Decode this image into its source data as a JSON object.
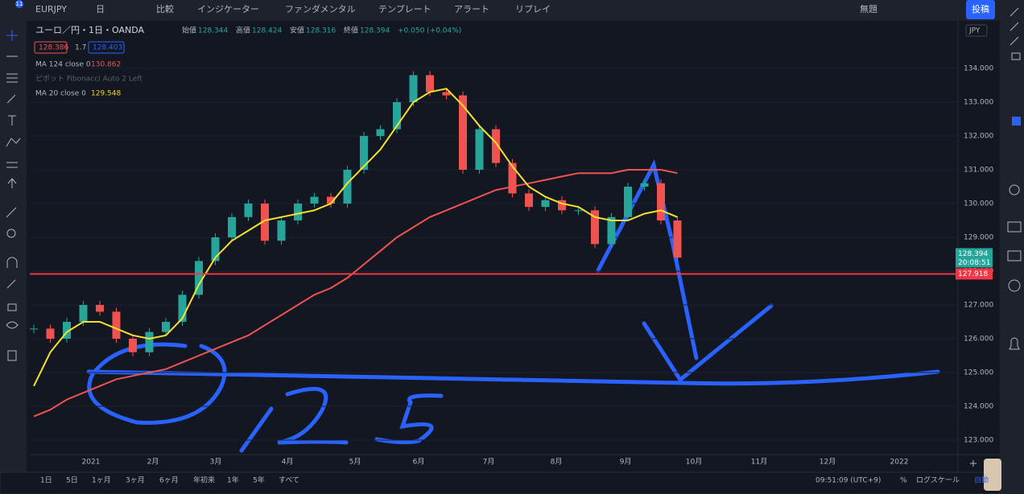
{
  "top_toolbar": {
    "badge": "11",
    "symbol": "EURJPY",
    "interval": "日",
    "items": [
      "比較",
      "インジケーター",
      "ファンダメンタル",
      "テンプレート",
      "アラート",
      "リプレイ"
    ],
    "layout_name": "無題",
    "publish": "投稿"
  },
  "legend": {
    "title": "ユーロ／円・1日・OANDA",
    "ohlc": [
      {
        "label": "始値",
        "value": "128.344"
      },
      {
        "label": "高値",
        "value": "128.424"
      },
      {
        "label": "安値",
        "value": "128.316"
      },
      {
        "label": "終値",
        "value": "128.394"
      }
    ],
    "change": "+0.050 (+0.04%)",
    "bid": "128.386",
    "spread": "1.7",
    "ask": "128.403",
    "indicators": [
      {
        "name": "MA 124 close 0",
        "value": "130.862"
      },
      {
        "name": "ピボット Fibonacci Auto 2 Left"
      },
      {
        "name": "MA 20 close 0",
        "value": "129.548"
      }
    ]
  },
  "chart": {
    "close": [
      126.3,
      126.0,
      126.5,
      127.0,
      126.8,
      126.0,
      125.6,
      126.2,
      126.5,
      127.3,
      128.3,
      129.0,
      129.6,
      130.0,
      128.9,
      129.5,
      130.0,
      130.2,
      130.0,
      131.0,
      132.0,
      132.2,
      133.0,
      133.8,
      133.3,
      133.2,
      131.0,
      132.2,
      131.2,
      130.3,
      129.9,
      130.1,
      129.8,
      129.8,
      128.8,
      129.6,
      130.5,
      130.6,
      129.5,
      128.4
    ],
    "ma20": [
      124.6,
      125.6,
      126.2,
      126.5,
      126.5,
      126.3,
      126.1,
      126.0,
      126.1,
      126.6,
      127.6,
      128.4,
      128.9,
      129.2,
      129.5,
      129.6,
      129.7,
      129.8,
      130.0,
      130.6,
      131.1,
      131.6,
      132.3,
      133.0,
      133.3,
      133.4,
      132.9,
      132.3,
      131.8,
      131.1,
      130.5,
      130.2,
      130.0,
      129.9,
      129.6,
      129.5,
      129.5,
      129.7,
      129.8,
      129.6
    ],
    "ma124": [
      123.7,
      123.9,
      124.2,
      124.4,
      124.6,
      124.8,
      124.9,
      125.0,
      125.1,
      125.3,
      125.5,
      125.7,
      125.9,
      126.1,
      126.4,
      126.7,
      127.0,
      127.3,
      127.5,
      127.8,
      128.2,
      128.6,
      129.0,
      129.3,
      129.6,
      129.8,
      130.0,
      130.2,
      130.4,
      130.5,
      130.6,
      130.7,
      130.8,
      130.9,
      130.9,
      130.9,
      131.0,
      131.0,
      131.0,
      130.9
    ],
    "horizontal_line": {
      "value": 127.918,
      "label": "127.918"
    },
    "last_price": {
      "value": 128.394,
      "label": "128.394"
    },
    "countdown": "20:08:51",
    "currency": "JPY",
    "yticks": [
      {
        "value": 134,
        "label": "134.000"
      },
      {
        "value": 133,
        "label": "133.000"
      },
      {
        "value": 132,
        "label": "132.000"
      },
      {
        "value": 131,
        "label": "131.000"
      },
      {
        "value": 130,
        "label": "130.000"
      },
      {
        "value": 129,
        "label": "129.000"
      },
      {
        "value": 128,
        "label": "128.000"
      },
      {
        "value": 127,
        "label": "127.000"
      },
      {
        "value": 126,
        "label": "126.000"
      },
      {
        "value": 125,
        "label": "125.000"
      },
      {
        "value": 124,
        "label": "124.000"
      },
      {
        "value": 123,
        "label": "123.000"
      }
    ],
    "time_labels": [
      "2021",
      "2月",
      "3月",
      "4月",
      "5月",
      "6月",
      "7月",
      "8月",
      "9月",
      "10月",
      "11月",
      "12月",
      "2022"
    ]
  },
  "bottom_bar": {
    "ranges": [
      "1日",
      "5日",
      "1ヶ月",
      "3ヶ月",
      "6ヶ月",
      "年初来",
      "1年",
      "5年",
      "すべて"
    ],
    "clock": "09:51:09 (UTC+9)",
    "percent": "%",
    "log": "ログスケール",
    "auto": "自動"
  }
}
